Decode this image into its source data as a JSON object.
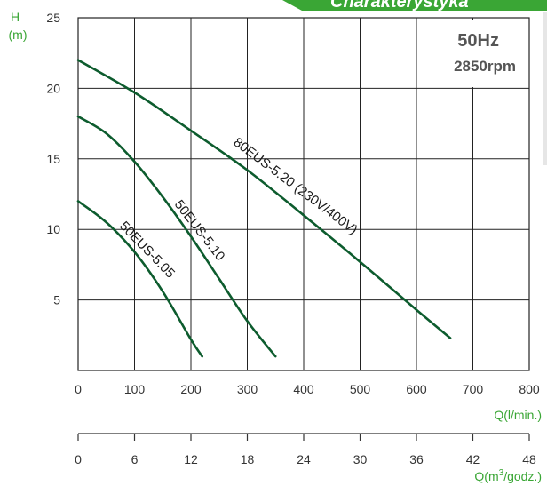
{
  "banner": {
    "text": "Charakterystyka",
    "color": "#3aa635"
  },
  "info": {
    "frequency": "50Hz",
    "speed": "2850rpm"
  },
  "chart_data": {
    "type": "line",
    "y_axis": {
      "label_line1": "H",
      "label_line2": "(m)",
      "ylim": [
        0,
        25
      ],
      "ticks": [
        5,
        10,
        15,
        20,
        25
      ]
    },
    "x_axis": {
      "xlim": [
        0,
        800
      ],
      "ticks": [
        0,
        100,
        200,
        300,
        400,
        500,
        600,
        700,
        800
      ],
      "label": "Q(l/min.)"
    },
    "x_axis_secondary": {
      "ticks": [
        0,
        6,
        12,
        18,
        24,
        30,
        36,
        42,
        48
      ],
      "label_prefix": "Q(m",
      "label_sup": "3",
      "label_suffix": "/godz.)"
    },
    "grid": true,
    "line_color": "#0d5c2e",
    "series": [
      {
        "name": "50EUS-5.05",
        "x": [
          0,
          50,
          100,
          150,
          200,
          220
        ],
        "y": [
          12.0,
          10.5,
          8.4,
          5.6,
          2.2,
          1.0
        ]
      },
      {
        "name": "50EUS-5.10",
        "x": [
          0,
          50,
          100,
          150,
          200,
          250,
          300,
          350
        ],
        "y": [
          18.0,
          16.8,
          14.8,
          12.3,
          9.5,
          6.5,
          3.5,
          1.0
        ]
      },
      {
        "name": "80EUS-5.20 (230V/400V)",
        "x": [
          0,
          100,
          200,
          300,
          400,
          500,
          600,
          660
        ],
        "y": [
          22.0,
          19.7,
          17.0,
          14.2,
          11.0,
          7.7,
          4.3,
          2.3
        ]
      }
    ]
  }
}
